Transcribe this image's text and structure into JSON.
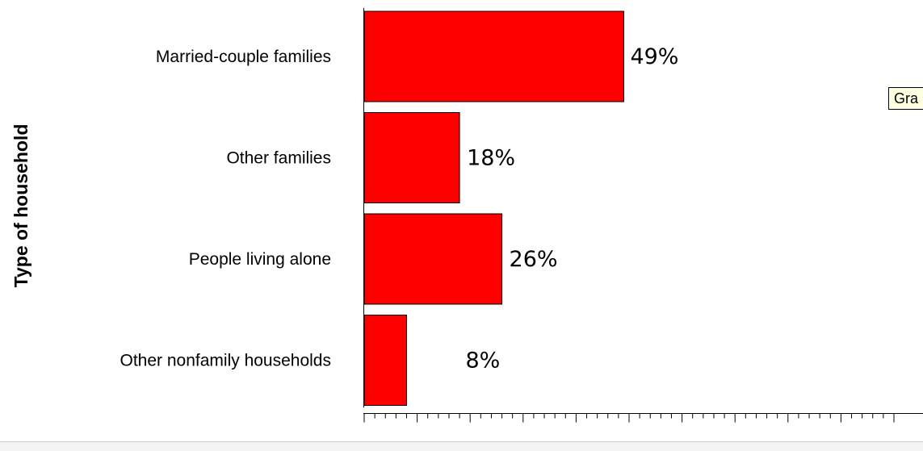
{
  "chart_data": {
    "type": "bar",
    "orientation": "horizontal",
    "categories": [
      "Married-couple families",
      "Other families",
      "People living alone",
      "Other nonfamily households"
    ],
    "values": [
      49,
      18,
      26,
      8
    ],
    "data_labels": [
      "49%",
      "18%",
      "26%",
      "8%"
    ],
    "xlim": [
      0,
      100
    ],
    "x_ticks": [
      "0",
      "10",
      "20",
      "30",
      "40",
      "50",
      "60",
      "70",
      "80",
      "90",
      "100"
    ],
    "ylabel": "Type of household",
    "xlabel": "",
    "bar_color": "#ff0000",
    "grid": false
  },
  "tooltip": {
    "text": "Gra"
  }
}
